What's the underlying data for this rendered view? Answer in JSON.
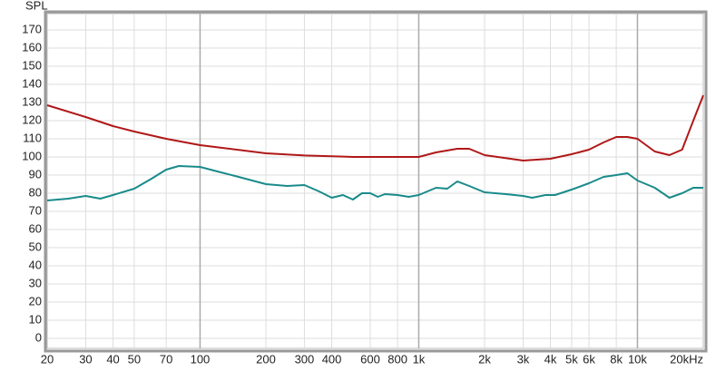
{
  "chart_data": {
    "type": "line",
    "y_label": "SPL",
    "log_x": true,
    "grid": true,
    "xlim": [
      20,
      20000
    ],
    "ylim": [
      -5.5,
      179
    ],
    "xticks": [
      20,
      30,
      40,
      50,
      70,
      100,
      200,
      300,
      400,
      600,
      800,
      {
        "value": 1000,
        "label": "1k"
      },
      {
        "value": 2000,
        "label": "2k"
      },
      {
        "value": 3000,
        "label": "3k"
      },
      {
        "value": 4000,
        "label": "4k"
      },
      {
        "value": 5000,
        "label": "5k"
      },
      {
        "value": 6000,
        "label": "6k"
      },
      {
        "value": 8000,
        "label": "8k"
      },
      {
        "value": 10000,
        "label": "10k"
      },
      {
        "value": 20000,
        "label": "20kHz"
      }
    ],
    "yticks": [
      0,
      10,
      20,
      30,
      40,
      50,
      60,
      70,
      80,
      90,
      100,
      110,
      120,
      130,
      140,
      150,
      160,
      170
    ],
    "series": [
      {
        "color": "#b01818",
        "x": [
          20,
          30,
          40,
          50,
          70,
          100,
          200,
          300,
          500,
          1000,
          1200,
          1500,
          1700,
          2000,
          3000,
          4000,
          5000,
          6000,
          7000,
          8000,
          9000,
          10000,
          12000,
          14000,
          16000,
          18000,
          20000
        ],
        "values": [
          128.5,
          122,
          117,
          114,
          110,
          106.5,
          102,
          100.8,
          100,
          100,
          102.5,
          104.5,
          104.5,
          101,
          98,
          99,
          101.5,
          104,
          108,
          111,
          111,
          110,
          103,
          101,
          104,
          120,
          134
        ]
      },
      {
        "color": "#1a8a8a",
        "x": [
          20,
          25,
          30,
          35,
          40,
          50,
          60,
          70,
          80,
          100,
          120,
          150,
          200,
          250,
          300,
          350,
          400,
          450,
          500,
          550,
          600,
          650,
          700,
          800,
          900,
          1000,
          1200,
          1350,
          1500,
          1700,
          2000,
          2500,
          3000,
          3300,
          3800,
          4200,
          5000,
          6000,
          7000,
          8000,
          9000,
          10000,
          12000,
          14000,
          16000,
          18000,
          20000
        ],
        "values": [
          76,
          77,
          78.5,
          77,
          79,
          82.5,
          88,
          93,
          95,
          94.5,
          92,
          89,
          85,
          84,
          84.5,
          81,
          77.5,
          79,
          76.5,
          80,
          80,
          78,
          79.5,
          79,
          78,
          79,
          83,
          82.5,
          86.5,
          84,
          80.5,
          79.5,
          78.5,
          77.5,
          79,
          79,
          82,
          85.5,
          89,
          90,
          91,
          87,
          83,
          77.5,
          80,
          83,
          83
        ]
      }
    ]
  }
}
